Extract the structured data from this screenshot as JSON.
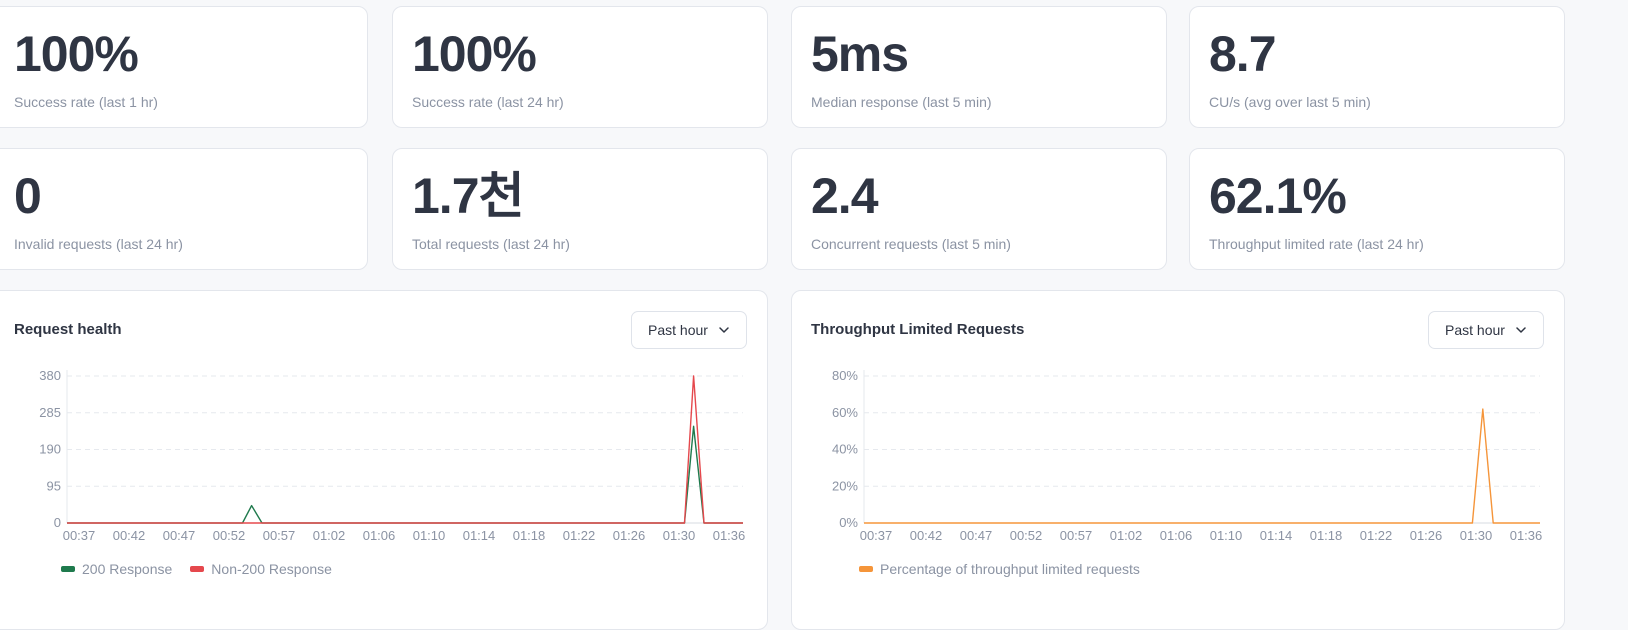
{
  "stats": [
    {
      "value": "100%",
      "label": "Success rate (last 1 hr)"
    },
    {
      "value": "100%",
      "label": "Success rate (last 24 hr)"
    },
    {
      "value": "5ms",
      "label": "Median response (last 5 min)"
    },
    {
      "value": "8.7",
      "label": "CU/s (avg over last 5 min)"
    },
    {
      "value": "0",
      "label": "Invalid requests (last 24 hr)"
    },
    {
      "value": "1.7천",
      "label": "Total requests (last 24 hr)"
    },
    {
      "value": "2.4",
      "label": "Concurrent requests (last 5 min)"
    },
    {
      "value": "62.1%",
      "label": "Throughput limited rate (last 24 hr)"
    }
  ],
  "request_health": {
    "title": "Request health",
    "range_label": "Past hour",
    "chart_data": {
      "type": "line",
      "x": [
        "00:37",
        "00:42",
        "00:47",
        "00:52",
        "00:57",
        "01:02",
        "01:06",
        "01:10",
        "01:14",
        "01:18",
        "01:22",
        "01:26",
        "01:30",
        "01:36"
      ],
      "y_ticks": [
        "0",
        "95",
        "190",
        "285",
        "380"
      ],
      "ylim": [
        0,
        380
      ],
      "grid": true,
      "legend_position": "bottom-left",
      "series": [
        {
          "name": "200 Response",
          "color": "#1f7a4d",
          "points": [
            [
              0,
              0
            ],
            [
              13.5,
              0
            ],
            [
              14.2,
              45
            ],
            [
              15,
              0
            ],
            [
              47.5,
              0
            ],
            [
              48.2,
              250
            ],
            [
              49,
              0
            ],
            [
              52,
              0
            ]
          ]
        },
        {
          "name": "Non-200 Response",
          "color": "#e5484d",
          "points": [
            [
              0,
              0
            ],
            [
              47.5,
              0
            ],
            [
              48.2,
              380
            ],
            [
              49,
              0
            ],
            [
              52,
              0
            ]
          ]
        }
      ]
    }
  },
  "throughput": {
    "title": "Throughput Limited Requests",
    "range_label": "Past hour",
    "chart_data": {
      "type": "line",
      "x": [
        "00:37",
        "00:42",
        "00:47",
        "00:52",
        "00:57",
        "01:02",
        "01:06",
        "01:10",
        "01:14",
        "01:18",
        "01:22",
        "01:26",
        "01:30",
        "01:36"
      ],
      "y_ticks": [
        "0%",
        "20%",
        "40%",
        "60%",
        "80%"
      ],
      "ylim": [
        0,
        80
      ],
      "grid": true,
      "legend_position": "bottom-left",
      "series": [
        {
          "name": "Percentage of throughput limited requests",
          "color": "#f5953a",
          "points": [
            [
              0,
              0
            ],
            [
              46.8,
              0
            ],
            [
              47.6,
              62
            ],
            [
              48.4,
              0
            ],
            [
              52,
              0
            ]
          ]
        }
      ]
    }
  }
}
